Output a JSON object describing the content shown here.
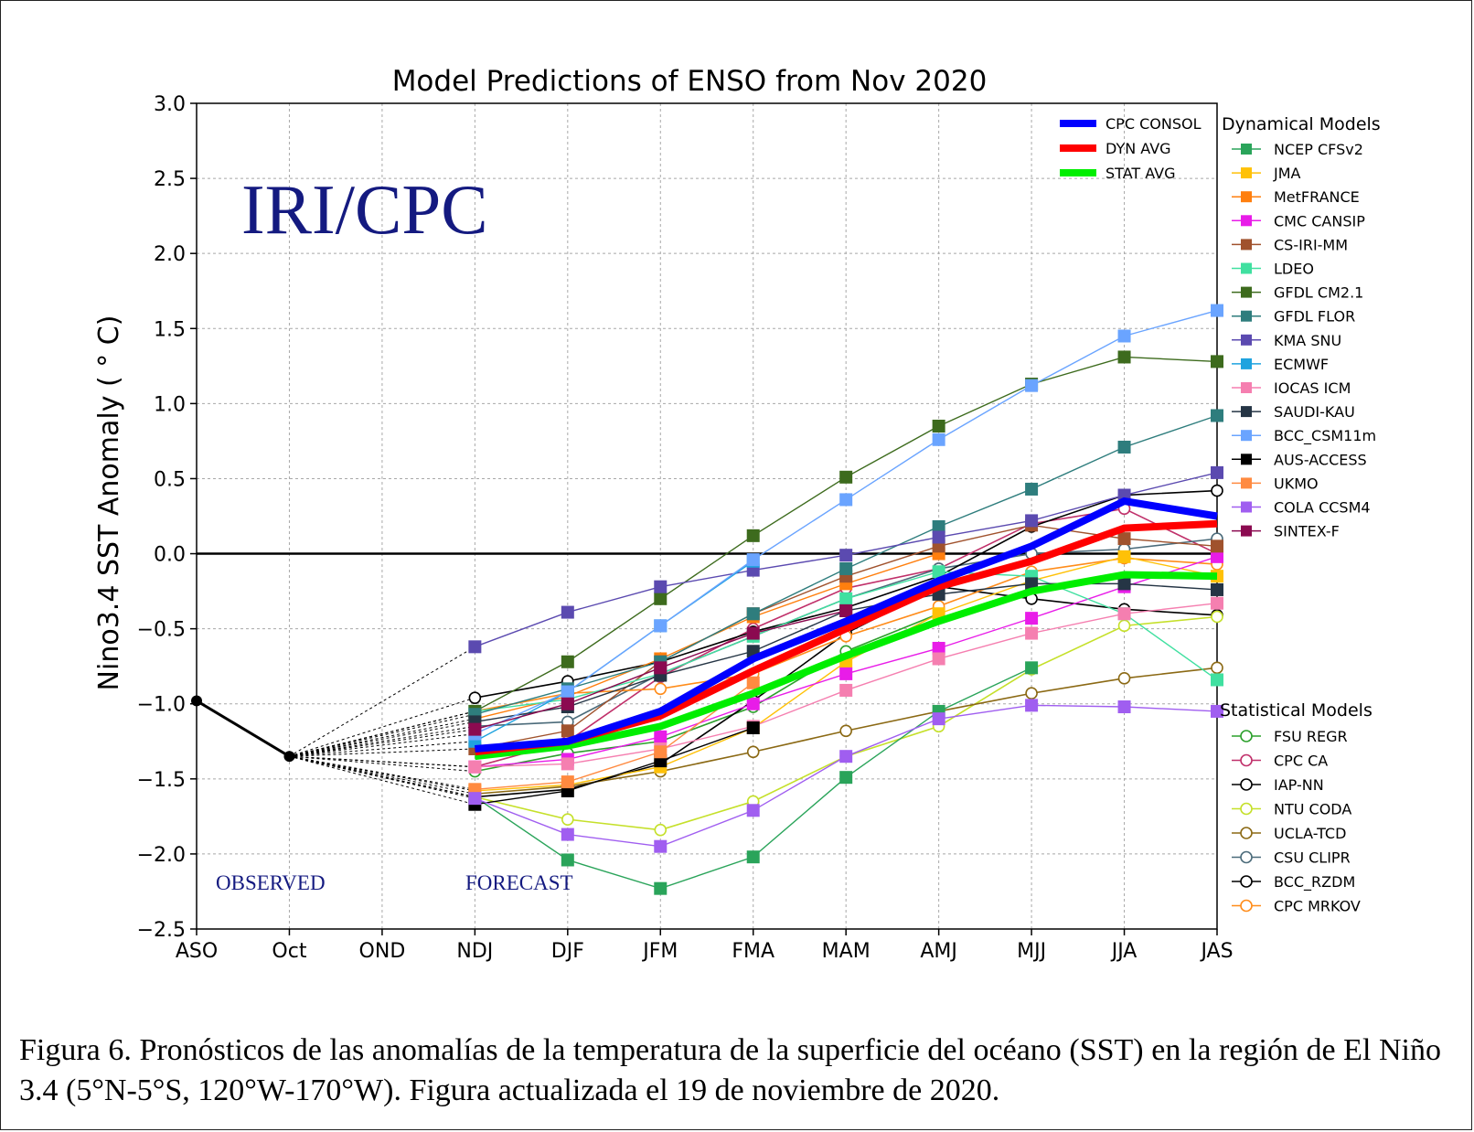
{
  "chart_data": {
    "type": "line",
    "title": "Model Predictions of ENSO from Nov 2020",
    "ylabel": "Nino3.4 SST Anomaly ( ° C)",
    "xlabel": "",
    "categories": [
      "ASO",
      "Oct",
      "OND",
      "NDJ",
      "DJF",
      "JFM",
      "FMA",
      "MAM",
      "AMJ",
      "MJJ",
      "JJA",
      "JAS"
    ],
    "yticks": [
      "3.0",
      "2.5",
      "2.0",
      "1.5",
      "1.0",
      "0.5",
      "0.0",
      "−0.5",
      "−1.0",
      "−1.5",
      "−2.0",
      "−2.5"
    ],
    "ylim": [
      -2.5,
      3.0
    ],
    "grid": true,
    "watermark": "IRI/CPC",
    "observed_label": "OBSERVED",
    "forecast_label": "FORECAST",
    "observed": {
      "x": [
        "ASO",
        "Oct"
      ],
      "y": [
        -0.98,
        -1.35
      ],
      "color": "#000000"
    },
    "consensus_legend": [
      {
        "name": "CPC CONSOL",
        "color": "#0000ff"
      },
      {
        "name": "DYN AVG",
        "color": "#ff0000"
      },
      {
        "name": "STAT AVG",
        "color": "#00ee00"
      }
    ],
    "dynamical_title": "Dynamical Models",
    "statistical_title": "Statistical Models",
    "consensus": [
      {
        "name": "CPC CONSOL",
        "color": "#0000ff",
        "values": [
          -1.3,
          -1.25,
          -1.05,
          -0.7,
          -0.45,
          -0.18,
          0.05,
          0.35,
          0.25
        ]
      },
      {
        "name": "DYN AVG",
        "color": "#ff0000",
        "values": [
          -1.32,
          -1.25,
          -1.08,
          -0.78,
          -0.5,
          -0.22,
          -0.05,
          0.17,
          0.2
        ]
      },
      {
        "name": "STAT AVG",
        "color": "#00ee00",
        "values": [
          -1.35,
          -1.28,
          -1.15,
          -0.93,
          -0.68,
          -0.45,
          -0.25,
          -0.14,
          -0.15
        ]
      }
    ],
    "dynamical": [
      {
        "name": "NCEP CFSv2",
        "color": "#2aa45a",
        "values": [
          -1.62,
          -2.04,
          -2.23,
          -2.02,
          -1.49,
          -1.05,
          -0.76,
          null,
          null
        ]
      },
      {
        "name": "JMA",
        "color": "#ffc107",
        "values": [
          -1.58,
          -1.54,
          -1.42,
          -1.16,
          -0.72,
          -0.4,
          -0.18,
          -0.02,
          -0.15
        ]
      },
      {
        "name": "MetFRANCE",
        "color": "#ff7f0e",
        "values": [
          -1.1,
          -0.95,
          -0.7,
          -0.42,
          -0.2,
          0.0,
          null,
          null,
          null
        ]
      },
      {
        "name": "CMC CANSIP",
        "color": "#e81ce8",
        "values": [
          -1.42,
          -1.37,
          -1.22,
          -1.0,
          -0.8,
          -0.63,
          -0.43,
          -0.22,
          -0.02
        ]
      },
      {
        "name": "CS-IRI-MM",
        "color": "#a0522d",
        "values": [
          -1.3,
          -1.18,
          -0.72,
          -0.4,
          -0.15,
          0.05,
          0.19,
          0.1,
          0.05
        ]
      },
      {
        "name": "LDEO",
        "color": "#40e0a0",
        "values": [
          -1.05,
          -0.97,
          -0.8,
          -0.55,
          -0.3,
          -0.12,
          -0.15,
          -0.4,
          -0.84
        ]
      },
      {
        "name": "GFDL CM2.1",
        "color": "#3d6b1d",
        "values": [
          -1.05,
          -0.72,
          -0.3,
          0.12,
          0.51,
          0.85,
          1.13,
          1.31,
          1.28
        ]
      },
      {
        "name": "GFDL FLOR",
        "color": "#2e7d7d",
        "values": [
          -1.07,
          -0.9,
          -0.72,
          -0.4,
          -0.1,
          0.18,
          0.43,
          0.71,
          0.92
        ]
      },
      {
        "name": "KMA SNU",
        "color": "#5b4ab0",
        "values": [
          -0.62,
          -0.39,
          -0.22,
          -0.11,
          -0.01,
          0.11,
          0.22,
          0.39,
          0.54
        ]
      },
      {
        "name": "ECMWF",
        "color": "#1fa3df",
        "values": [
          -1.25,
          -0.92,
          -0.48,
          -0.05,
          null,
          null,
          null,
          null,
          null
        ]
      },
      {
        "name": "IOCAS ICM",
        "color": "#f57fb0",
        "values": [
          -1.42,
          -1.4,
          -1.3,
          -1.15,
          -0.91,
          -0.7,
          -0.53,
          -0.4,
          -0.33
        ]
      },
      {
        "name": "SAUDI-KAU",
        "color": "#253545",
        "values": [
          -1.12,
          -1.02,
          -0.81,
          -0.65,
          -0.38,
          -0.27,
          -0.2,
          -0.2,
          -0.24
        ]
      },
      {
        "name": "BCC_CSM11m",
        "color": "#6aa4ff",
        "values": [
          -1.2,
          -0.92,
          -0.48,
          -0.04,
          0.36,
          0.76,
          1.12,
          1.45,
          1.62
        ]
      },
      {
        "name": "AUS-ACCESS",
        "color": "#000000",
        "values": [
          -1.67,
          -1.58,
          -1.38,
          -1.16,
          null,
          null,
          null,
          null,
          null
        ]
      },
      {
        "name": "UKMO",
        "color": "#ff8a40",
        "values": [
          -1.57,
          -1.52,
          -1.32,
          -0.86,
          null,
          null,
          null,
          null,
          null
        ]
      },
      {
        "name": "COLA CCSM4",
        "color": "#a05ef0",
        "values": [
          -1.63,
          -1.87,
          -1.95,
          -1.71,
          -1.35,
          -1.1,
          -1.01,
          -1.02,
          -1.05
        ]
      },
      {
        "name": "SINTEX-F",
        "color": "#8b0a50",
        "values": [
          -1.17,
          -1.0,
          -0.76,
          -0.53,
          -0.38,
          null,
          null,
          null,
          null
        ]
      }
    ],
    "statistical": [
      {
        "name": "FSU REGR",
        "color": "#2ca02c",
        "values": [
          -1.45,
          -1.33,
          -1.25,
          -1.02,
          -0.65,
          -0.4,
          null,
          null,
          null
        ]
      },
      {
        "name": "CPC CA",
        "color": "#c0306a",
        "values": [
          -1.42,
          -1.25,
          -0.82,
          -0.5,
          -0.23,
          -0.1,
          0.2,
          0.3,
          0.0
        ]
      },
      {
        "name": "IAP-NN",
        "color": "#000000",
        "values": [
          -1.62,
          -1.57,
          -1.4,
          -0.98,
          -0.53,
          -0.22,
          -0.3,
          -0.37,
          -0.41
        ]
      },
      {
        "name": "NTU CODA",
        "color": "#c5e02a",
        "values": [
          -1.62,
          -1.77,
          -1.84,
          -1.65,
          -1.35,
          -1.15,
          -0.77,
          -0.48,
          -0.42
        ]
      },
      {
        "name": "UCLA-TCD",
        "color": "#8b6914",
        "values": [
          -1.6,
          -1.55,
          -1.45,
          -1.32,
          -1.18,
          -1.05,
          -0.93,
          -0.83,
          -0.76
        ]
      },
      {
        "name": "CSU CLIPR",
        "color": "#4b6b7a",
        "values": [
          -1.15,
          -1.12,
          -0.8,
          -0.55,
          -0.3,
          -0.1,
          0.0,
          0.03,
          0.1
        ]
      },
      {
        "name": "BCC_RZDM",
        "color": "#000000",
        "values": [
          -0.96,
          -0.85,
          -0.72,
          -0.52,
          -0.36,
          -0.15,
          0.18,
          0.39,
          0.42
        ]
      },
      {
        "name": "CPC MRKOV",
        "color": "#ff8c1a",
        "values": [
          -1.05,
          -0.93,
          -0.9,
          -0.8,
          -0.55,
          -0.35,
          -0.12,
          -0.03,
          -0.07
        ]
      }
    ]
  },
  "caption": "Figura 6. Pronósticos de las anomalías de la temperatura de la superficie del océano (SST) en la región de El Niño 3.4 (5°N-5°S, 120°W-170°W). Figura actualizada el 19 de noviembre de 2020."
}
